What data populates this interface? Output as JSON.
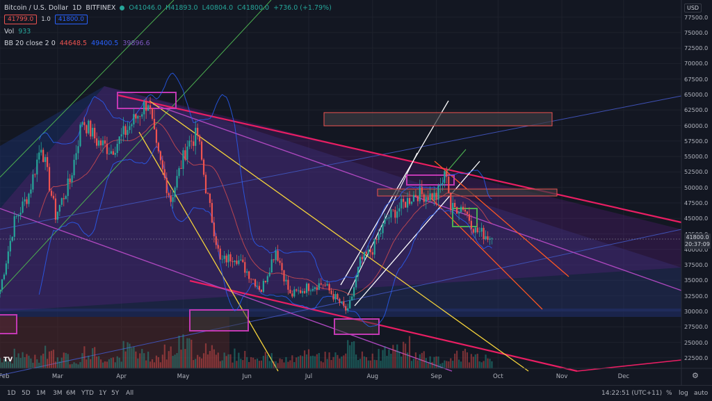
{
  "header": {
    "symbol": "Bitcoin / U.S. Dollar",
    "interval": "1D",
    "exchange": "BITFINEX",
    "open": "O41046.0",
    "high": "H41893.0",
    "low": "L40804.0",
    "close": "C41800.0",
    "change": "+736.0 (+1.79%)",
    "sell_price": "41799.0",
    "spread": "1.0",
    "buy_price": "41800.0",
    "vol_label": "Vol",
    "vol_value": "933",
    "bb_label": "BB 20 close 2 0",
    "bb_basis": "44648.5",
    "bb_upper": "49400.5",
    "bb_lower": "39896.6"
  },
  "currency": "USD",
  "last_price": "41800.0",
  "countdown": "20:37:09",
  "range_buttons": [
    "1D",
    "5D",
    "1M",
    "3M",
    "6M",
    "YTD",
    "1Y",
    "5Y",
    "All"
  ],
  "toolbar": {
    "clock": "14:22:51 (UTC+11)",
    "percent": "%",
    "log": "log",
    "auto": "auto"
  },
  "logo_text": "TV",
  "colors": {
    "up": "#26a69a",
    "down": "#ef5350",
    "bb_basis": "#ef5350",
    "bb_band": "#2962ff",
    "trend_pink": "#e91e63",
    "trend_yellow": "#f5d33b",
    "trend_purple": "#9c27b0",
    "channel_white": "#ffffff",
    "channel_orange": "#ff5722",
    "channel_green": "#4caf50",
    "zone_blue": "#2a3a7a"
  },
  "chart_data": {
    "type": "candlestick",
    "ylim": [
      20000,
      80000
    ],
    "yticks": [
      22500,
      25000,
      27500,
      30000,
      32500,
      35000,
      37500,
      40000,
      42500,
      45000,
      47500,
      50000,
      52500,
      55000,
      57500,
      60000,
      62500,
      65000,
      67500,
      70000,
      72500,
      75000,
      77500
    ],
    "xticks": [
      "Feb",
      "Mar",
      "Apr",
      "May",
      "Jun",
      "Jul",
      "Aug",
      "Sep",
      "Oct",
      "Nov",
      "Dec"
    ],
    "price_path": [
      [
        "Feb-01",
        33500
      ],
      [
        "Feb-08",
        44500
      ],
      [
        "Feb-15",
        49000
      ],
      [
        "Feb-21",
        57000
      ],
      [
        "Feb-28",
        45500
      ],
      [
        "Mar-07",
        51000
      ],
      [
        "Mar-13",
        61000
      ],
      [
        "Mar-20",
        57500
      ],
      [
        "Mar-27",
        56000
      ],
      [
        "Apr-03",
        59000
      ],
      [
        "Apr-14",
        64000
      ],
      [
        "Apr-18",
        56000
      ],
      [
        "Apr-25",
        48000
      ],
      [
        "May-03",
        57000
      ],
      [
        "May-08",
        58500
      ],
      [
        "May-12",
        50000
      ],
      [
        "May-19",
        38000
      ],
      [
        "May-26",
        39000
      ],
      [
        "Jun-08",
        33500
      ],
      [
        "Jun-15",
        40000
      ],
      [
        "Jun-22",
        32500
      ],
      [
        "Jul-01",
        34000
      ],
      [
        "Jul-08",
        34500
      ],
      [
        "Jul-20",
        29800
      ],
      [
        "Jul-26",
        38000
      ],
      [
        "Aug-01",
        40000
      ],
      [
        "Aug-08",
        45000
      ],
      [
        "Aug-15",
        47000
      ],
      [
        "Aug-22",
        49000
      ],
      [
        "Sep-01",
        48500
      ],
      [
        "Sep-06",
        52600
      ],
      [
        "Sep-08",
        46500
      ],
      [
        "Sep-14",
        47000
      ],
      [
        "Sep-20",
        43000
      ],
      [
        "Sep-24",
        42500
      ],
      [
        "Sep-28",
        41800
      ]
    ],
    "volume_relative": [
      0.2,
      0.35,
      0.25,
      0.45,
      0.3,
      0.2,
      0.4,
      0.25,
      0.3,
      0.5,
      0.35,
      0.3,
      0.45,
      0.6,
      0.4,
      0.55,
      0.3,
      0.35,
      0.25,
      0.3,
      0.2,
      0.25,
      0.35,
      0.3,
      0.4,
      0.5,
      0.3,
      0.35,
      0.45,
      0.6,
      0.3,
      0.25,
      0.2,
      0.35,
      0.3,
      0.25
    ],
    "bollinger": {
      "period": 20,
      "std": 2
    }
  }
}
